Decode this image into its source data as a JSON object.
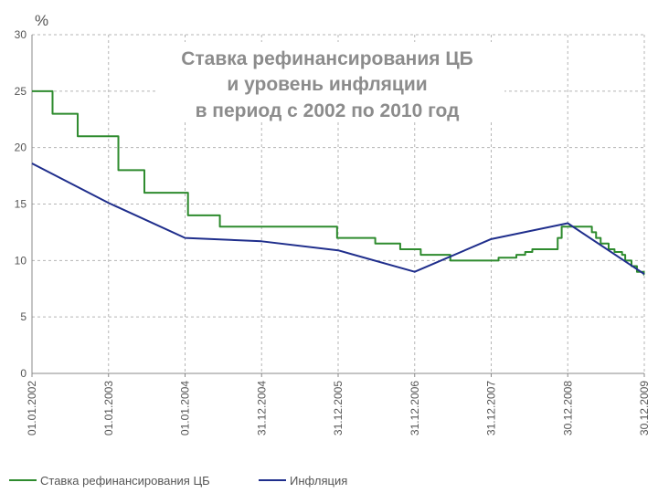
{
  "chart_data": {
    "type": "line",
    "title_lines": [
      "Ставка рефинансирования ЦБ",
      "и уровень инфляции",
      "в период с 2002 по 2010 год"
    ],
    "y_unit_label": "%",
    "ylim": [
      0,
      30
    ],
    "y_ticks": [
      0,
      5,
      10,
      15,
      20,
      25,
      30
    ],
    "x_ticks": [
      {
        "label": "01.01.2002",
        "date": "2002-01-01"
      },
      {
        "label": "01.01.2003",
        "date": "2003-01-01"
      },
      {
        "label": "01.01.2004",
        "date": "2004-01-01"
      },
      {
        "label": "31.12.2004",
        "date": "2004-12-31"
      },
      {
        "label": "31.12.2005",
        "date": "2005-12-31"
      },
      {
        "label": "31.12.2006",
        "date": "2006-12-31"
      },
      {
        "label": "31.12.2007",
        "date": "2007-12-31"
      },
      {
        "label": "30.12.2008",
        "date": "2008-12-30"
      },
      {
        "label": "30.12.2009",
        "date": "2009-12-30"
      }
    ],
    "xlim": [
      "2002-01-01",
      "2009-12-30"
    ],
    "grid": true,
    "legend_position": "bottom",
    "series": [
      {
        "name": "Ставка рефинансирования ЦБ",
        "color": "#2e8b2e",
        "step": true,
        "points": [
          {
            "x": "2002-01-01",
            "y": 25
          },
          {
            "x": "2002-04-09",
            "y": 23
          },
          {
            "x": "2002-08-07",
            "y": 21
          },
          {
            "x": "2003-02-17",
            "y": 18
          },
          {
            "x": "2003-06-21",
            "y": 16
          },
          {
            "x": "2004-01-15",
            "y": 14
          },
          {
            "x": "2004-06-15",
            "y": 13
          },
          {
            "x": "2005-12-26",
            "y": 12
          },
          {
            "x": "2006-06-26",
            "y": 11.5
          },
          {
            "x": "2006-10-23",
            "y": 11
          },
          {
            "x": "2007-01-29",
            "y": 10.5
          },
          {
            "x": "2007-06-19",
            "y": 10
          },
          {
            "x": "2008-02-04",
            "y": 10.25
          },
          {
            "x": "2008-04-29",
            "y": 10.5
          },
          {
            "x": "2008-06-10",
            "y": 10.75
          },
          {
            "x": "2008-07-14",
            "y": 11
          },
          {
            "x": "2008-11-12",
            "y": 12
          },
          {
            "x": "2008-12-01",
            "y": 13
          },
          {
            "x": "2009-04-24",
            "y": 12.5
          },
          {
            "x": "2009-05-14",
            "y": 12
          },
          {
            "x": "2009-06-05",
            "y": 11.5
          },
          {
            "x": "2009-07-13",
            "y": 11
          },
          {
            "x": "2009-08-10",
            "y": 10.75
          },
          {
            "x": "2009-09-15",
            "y": 10.5
          },
          {
            "x": "2009-09-30",
            "y": 10
          },
          {
            "x": "2009-10-30",
            "y": 9.5
          },
          {
            "x": "2009-11-25",
            "y": 9
          },
          {
            "x": "2009-12-28",
            "y": 8.75
          },
          {
            "x": "2009-12-30",
            "y": 8.75
          }
        ]
      },
      {
        "name": "Инфляция",
        "color": "#1f2e8c",
        "step": false,
        "points": [
          {
            "x": "2002-01-01",
            "y": 18.6
          },
          {
            "x": "2003-01-01",
            "y": 15.1
          },
          {
            "x": "2004-01-01",
            "y": 12.0
          },
          {
            "x": "2004-12-31",
            "y": 11.7
          },
          {
            "x": "2005-12-31",
            "y": 10.9
          },
          {
            "x": "2006-12-31",
            "y": 9.0
          },
          {
            "x": "2007-12-31",
            "y": 11.9
          },
          {
            "x": "2008-12-30",
            "y": 13.3
          },
          {
            "x": "2009-12-30",
            "y": 8.8
          }
        ]
      }
    ]
  }
}
